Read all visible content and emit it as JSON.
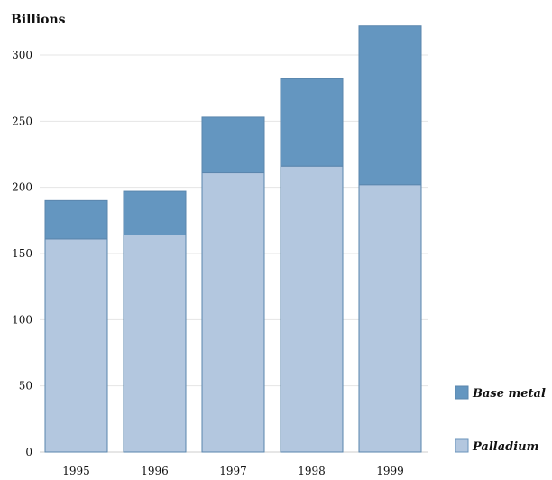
{
  "chart_data": {
    "type": "bar",
    "stacked": true,
    "title": "",
    "xlabel": "",
    "ylabel": "Billions",
    "categories": [
      "1995",
      "1996",
      "1997",
      "1998",
      "1999"
    ],
    "series": [
      {
        "name": "Palladium",
        "values": [
          161,
          164,
          211,
          216,
          202
        ],
        "color": "#b3c7df"
      },
      {
        "name": "Base metal",
        "values": [
          29,
          33,
          42,
          66,
          120
        ],
        "color": "#6496c0"
      }
    ],
    "yticks": [
      0,
      50,
      100,
      150,
      200,
      250,
      300
    ],
    "ylim": [
      0,
      320
    ],
    "grid": true,
    "legend_position": "right"
  }
}
